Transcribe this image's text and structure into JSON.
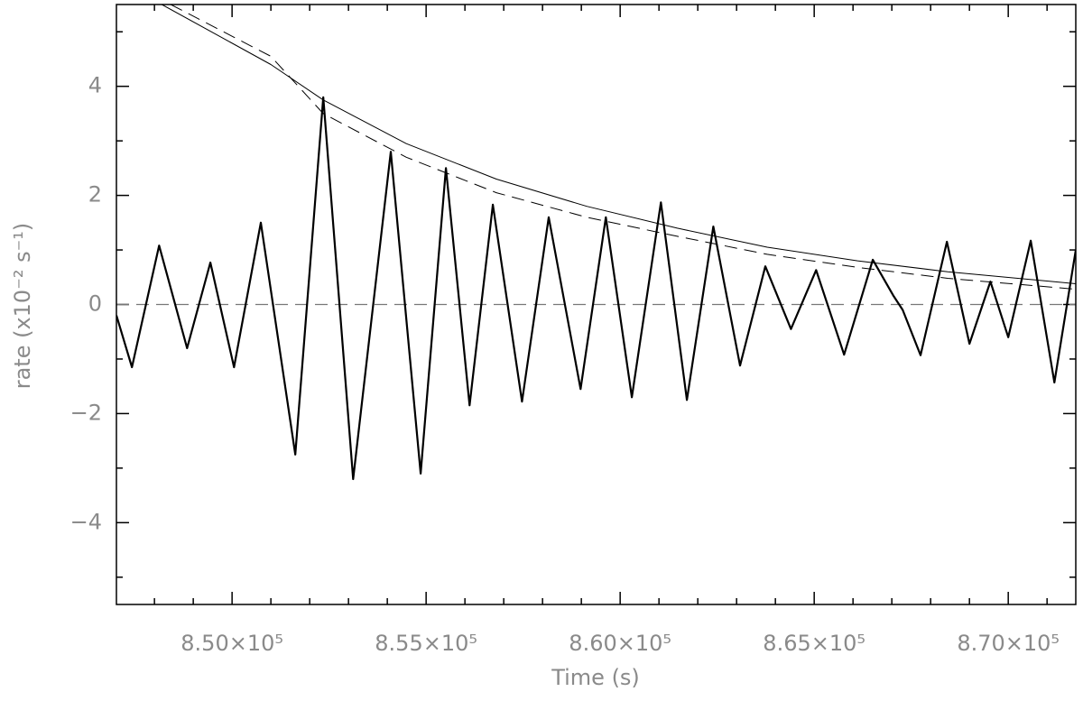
{
  "chart_data": {
    "type": "line",
    "xlabel": "Time (s)",
    "ylabel": "rate (x10⁻² s⁻¹)",
    "xlim": [
      847020,
      871740
    ],
    "ylim": [
      -5.5,
      5.5
    ],
    "xticks": [
      {
        "value": 850000,
        "label": "8.50×10⁵"
      },
      {
        "value": 855000,
        "label": "8.55×10⁵"
      },
      {
        "value": 860000,
        "label": "8.60×10⁵"
      },
      {
        "value": 865000,
        "label": "8.65×10⁵"
      },
      {
        "value": 870000,
        "label": "8.70×10⁵"
      }
    ],
    "yticks": [
      {
        "value": -4,
        "label": "−4"
      },
      {
        "value": -2,
        "label": "−2"
      },
      0,
      2,
      4
    ],
    "minor_xticks": [
      848000,
      849000,
      851000,
      852000,
      853000,
      854000,
      856000,
      857000,
      858000,
      859000,
      861000,
      862000,
      863000,
      864000,
      866000,
      867000,
      868000,
      869000,
      871000
    ],
    "minor_yticks": [
      -5,
      -3,
      -1,
      1,
      3,
      5
    ],
    "hlines": [
      0
    ],
    "series": [
      {
        "color": "#000000",
        "style": "solid",
        "width": 2.2,
        "x": [
          847020,
          847420,
          848120,
          848840,
          849440,
          850050,
          850740,
          851630,
          852350,
          853120,
          854090,
          854860,
          855510,
          856120,
          856720,
          857470,
          858160,
          858980,
          859630,
          860300,
          861050,
          861720,
          862400,
          863090,
          863740,
          864400,
          865050,
          865770,
          866510,
          867050,
          867280,
          867740,
          868420,
          869000,
          869540,
          870000,
          870580,
          871190,
          871740
        ],
        "values": [
          -0.2,
          -1.15,
          1.08,
          -0.8,
          0.77,
          -1.15,
          1.5,
          -2.75,
          3.8,
          -3.2,
          2.8,
          -3.1,
          2.5,
          -1.85,
          1.83,
          -1.78,
          1.6,
          -1.55,
          1.6,
          -1.7,
          1.87,
          -1.75,
          1.43,
          -1.12,
          0.7,
          -0.45,
          0.63,
          -0.92,
          0.82,
          0.15,
          -0.1,
          -0.93,
          1.15,
          -0.72,
          0.42,
          -0.6,
          1.17,
          -1.43,
          1.0
        ]
      },
      {
        "color": "#000000",
        "style": "solid",
        "width": 1,
        "x": [
          848190,
          851000,
          852350,
          854490,
          856810,
          859140,
          861470,
          863790,
          866120,
          868440,
          871740
        ],
        "values": [
          5.5,
          4.4,
          3.75,
          2.95,
          2.3,
          1.8,
          1.4,
          1.05,
          0.8,
          0.6,
          0.38
        ]
      },
      {
        "color": "#000000",
        "style": "dashed",
        "width": 1,
        "x": [
          848420,
          851000,
          852350,
          854490,
          856810,
          859140,
          861470,
          863790,
          866120,
          868440,
          871740
        ],
        "values": [
          5.5,
          4.55,
          3.5,
          2.7,
          2.05,
          1.6,
          1.25,
          0.92,
          0.68,
          0.48,
          0.28
        ]
      }
    ]
  }
}
